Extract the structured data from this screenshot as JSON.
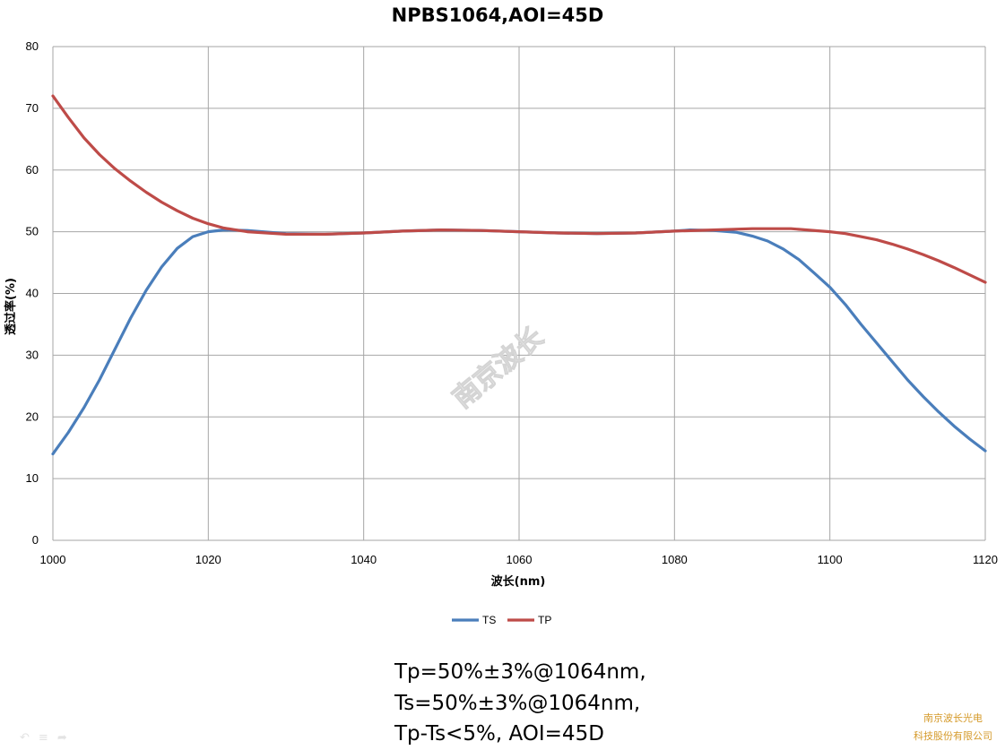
{
  "chart_data": {
    "type": "line",
    "title": "NPBS1064,AOI=45D",
    "xlabel": "波长(nm)",
    "ylabel": "透过率(%)",
    "xlim": [
      1000,
      1120
    ],
    "ylim": [
      0,
      80
    ],
    "x_ticks": [
      1000,
      1020,
      1040,
      1060,
      1080,
      1100,
      1120
    ],
    "y_ticks": [
      0,
      10,
      20,
      30,
      40,
      50,
      60,
      70,
      80
    ],
    "grid": true,
    "legend_position": "bottom",
    "series": [
      {
        "name": "TS",
        "color": "#4a7ebb",
        "x": [
          1000,
          1002,
          1004,
          1006,
          1008,
          1010,
          1012,
          1014,
          1016,
          1018,
          1020,
          1022,
          1025,
          1030,
          1035,
          1040,
          1045,
          1050,
          1055,
          1060,
          1065,
          1070,
          1075,
          1080,
          1082,
          1085,
          1088,
          1090,
          1092,
          1094,
          1096,
          1098,
          1100,
          1102,
          1104,
          1106,
          1108,
          1110,
          1112,
          1114,
          1116,
          1118,
          1120
        ],
        "values": [
          14,
          17.5,
          21.5,
          26,
          31,
          36,
          40.5,
          44.3,
          47.3,
          49.2,
          50,
          50.3,
          50.2,
          49.7,
          49.6,
          49.8,
          50.1,
          50.3,
          50.2,
          50,
          49.8,
          49.7,
          49.8,
          50.1,
          50.3,
          50.2,
          49.9,
          49.3,
          48.5,
          47.2,
          45.5,
          43.3,
          41,
          38.2,
          35,
          32,
          29,
          26,
          23.3,
          20.8,
          18.5,
          16.4,
          14.5
        ]
      },
      {
        "name": "TP",
        "color": "#be4b48",
        "x": [
          1000,
          1002,
          1004,
          1006,
          1008,
          1010,
          1012,
          1014,
          1016,
          1018,
          1020,
          1022,
          1025,
          1030,
          1035,
          1040,
          1045,
          1050,
          1055,
          1060,
          1065,
          1070,
          1075,
          1080,
          1085,
          1090,
          1095,
          1100,
          1102,
          1104,
          1106,
          1108,
          1110,
          1112,
          1114,
          1116,
          1118,
          1120
        ],
        "values": [
          72,
          68.5,
          65.2,
          62.5,
          60.2,
          58.2,
          56.4,
          54.8,
          53.4,
          52.2,
          51.3,
          50.6,
          50,
          49.6,
          49.6,
          49.8,
          50.1,
          50.3,
          50.2,
          50,
          49.8,
          49.7,
          49.8,
          50.1,
          50.3,
          50.5,
          50.5,
          50,
          49.7,
          49.2,
          48.7,
          48,
          47.2,
          46.3,
          45.3,
          44.2,
          43,
          41.8
        ]
      }
    ]
  },
  "watermark": "南京波长",
  "spec": {
    "line1": "Tp=50%±3%@1064nm,",
    "line2": "Ts=50%±3%@1064nm,",
    "line3": "Tp-Ts<5%, AOI=45D"
  },
  "company": {
    "line1": "南京波长光电",
    "line2": "科技股份有限公司"
  },
  "corner_icons": [
    "rotate-left-icon",
    "list-icon",
    "share-icon"
  ]
}
